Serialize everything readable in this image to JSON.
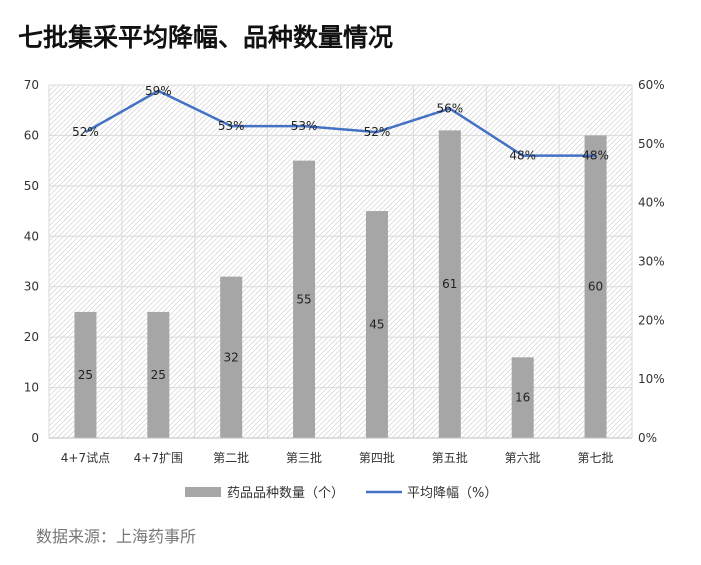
{
  "title": "七批集采平均降幅、品种数量情况",
  "source": "数据来源：上海药事所",
  "colors": {
    "bar": "#a6a6a6",
    "line": "#4472c4",
    "grid": "#d9d9d9"
  },
  "chart_data": {
    "type": "bar+line",
    "title": "七批集采平均降幅、品种数量情况",
    "categories": [
      "4+7试点",
      "4+7扩围",
      "第二批",
      "第三批",
      "第四批",
      "第五批",
      "第六批",
      "第七批"
    ],
    "series": [
      {
        "name": "药品品种数量（个）",
        "type": "bar",
        "axis": "left",
        "values": [
          25,
          25,
          32,
          55,
          45,
          61,
          16,
          60
        ],
        "labels": [
          "25",
          "25",
          "32",
          "55",
          "45",
          "61",
          "16",
          "60"
        ]
      },
      {
        "name": "平均降幅（%）",
        "type": "line",
        "axis": "right",
        "values": [
          52,
          59,
          53,
          53,
          52,
          56,
          48,
          48
        ],
        "labels": [
          "52%",
          "59%",
          "53%",
          "53%",
          "52%",
          "56%",
          "48%",
          "48%"
        ]
      }
    ],
    "y_left": {
      "range": [
        0,
        70
      ],
      "ticks": [
        "0",
        "10",
        "20",
        "30",
        "40",
        "50",
        "60",
        "70"
      ]
    },
    "y_right": {
      "range": [
        0,
        60
      ],
      "ticks": [
        "0%",
        "10%",
        "20%",
        "30%",
        "40%",
        "50%",
        "60%"
      ]
    },
    "grid": true,
    "legend_position": "bottom"
  }
}
